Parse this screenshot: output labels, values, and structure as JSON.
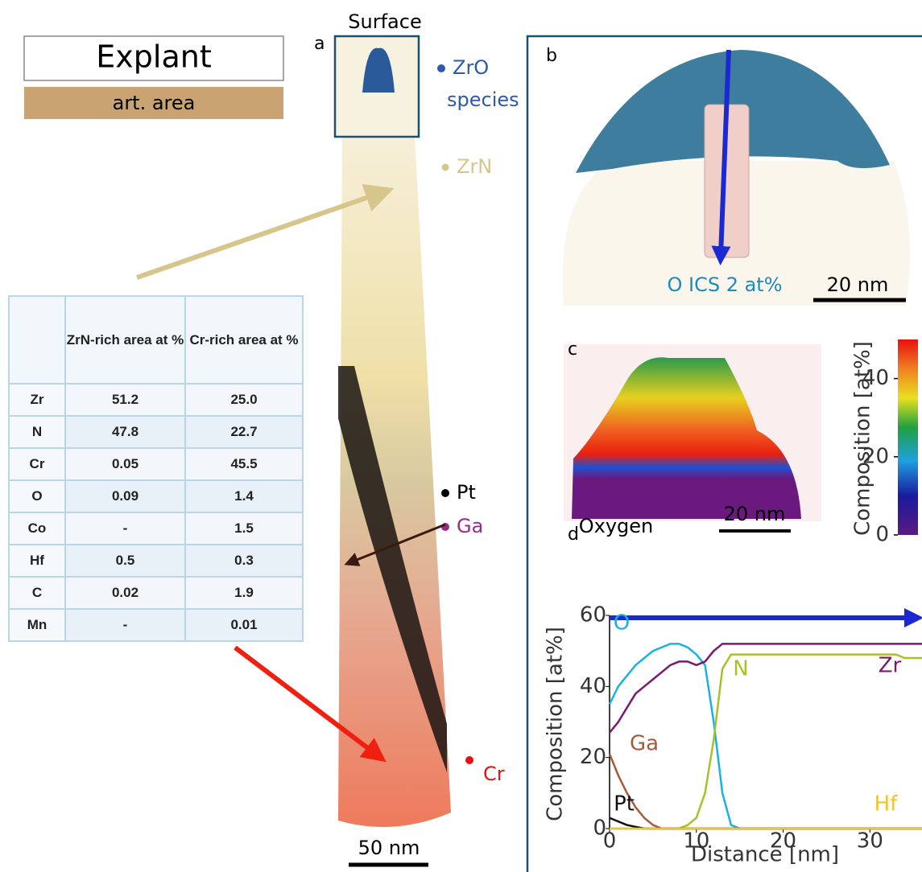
{
  "header": {
    "title": "Explant",
    "subtitle": "art. area"
  },
  "panel_a": {
    "letter": "a",
    "top_label": "Surface",
    "species": [
      "ZrO",
      "species",
      "ZrN",
      "Pt",
      "Ga",
      "Cr"
    ],
    "scale": "50 nm"
  },
  "panel_b": {
    "letter": "b",
    "label": "O ICS 2 at%",
    "scale": "20 nm"
  },
  "panel_c": {
    "letter": "c",
    "label": "Oxygen",
    "scale": "20 nm",
    "colorbar": {
      "label": "Composition [at%]",
      "lim": [
        0,
        50
      ],
      "ticks": [
        0,
        20,
        40
      ]
    }
  },
  "table": {
    "columns": [
      "ZrN-rich area at %",
      "Cr-rich area at %"
    ],
    "rows": [
      [
        "Zr",
        "51.2",
        "25.0"
      ],
      [
        "N",
        "47.8",
        "22.7"
      ],
      [
        "Cr",
        "0.05",
        "45.5"
      ],
      [
        "O",
        "0.09",
        "1.4"
      ],
      [
        "Co",
        "-",
        "1.5"
      ],
      [
        "Hf",
        "0.5",
        "0.3"
      ],
      [
        "C",
        "0.02",
        "1.9"
      ],
      [
        "Mn",
        "-",
        "0.01"
      ]
    ]
  },
  "chart_data": {
    "type": "line",
    "letter": "d",
    "x_label": "Distance [nm]",
    "y_label": "Composition [at%]",
    "xlim": [
      0,
      36
    ],
    "ylim": [
      0,
      60
    ],
    "xticks": [
      0,
      10,
      20,
      30
    ],
    "yticks": [
      0,
      20,
      40,
      60
    ],
    "x": [
      0,
      1,
      2,
      3,
      4,
      5,
      6,
      7,
      8,
      9,
      10,
      11,
      12,
      13,
      14,
      15,
      16,
      17,
      18,
      19,
      20,
      21,
      22,
      23,
      24,
      25,
      26,
      27,
      28,
      29,
      30,
      31,
      32,
      33,
      34,
      35,
      36
    ],
    "series": [
      {
        "name": "O",
        "color": "#19b2e3",
        "values": [
          35,
          40,
          43,
          46,
          48,
          50,
          51,
          52,
          52,
          51,
          49,
          46,
          30,
          10,
          1,
          0,
          0,
          0,
          0,
          0,
          0,
          0,
          0,
          0,
          0,
          0,
          0,
          0,
          0,
          0,
          0,
          0,
          0,
          0,
          0,
          0,
          0
        ]
      },
      {
        "name": "N",
        "color": "#a9c126",
        "values": [
          0,
          0,
          0,
          0,
          0,
          0,
          0,
          0,
          0,
          1,
          3,
          10,
          25,
          45,
          49,
          49,
          49,
          49,
          49,
          49,
          49,
          49,
          49,
          49,
          49,
          49,
          49,
          49,
          49,
          49,
          49,
          49,
          49,
          49,
          48,
          48,
          48
        ]
      },
      {
        "name": "Zr",
        "color": "#7a1a6e",
        "values": [
          27,
          30,
          34,
          38,
          40,
          42,
          44,
          46,
          47,
          47,
          46,
          47,
          50,
          52,
          52,
          52,
          52,
          52,
          52,
          52,
          52,
          52,
          52,
          52,
          52,
          52,
          52,
          52,
          52,
          52,
          52,
          52,
          52,
          52,
          52,
          52,
          52
        ]
      },
      {
        "name": "Ga",
        "color": "#a55a3c",
        "values": [
          21,
          15,
          10,
          6,
          3,
          1,
          0,
          0,
          0,
          0,
          0,
          0,
          0,
          0,
          0,
          0,
          0,
          0,
          0,
          0,
          0,
          0,
          0,
          0,
          0,
          0,
          0,
          0,
          0,
          0,
          0,
          0,
          0,
          0,
          0,
          0,
          0
        ]
      },
      {
        "name": "Pt",
        "color": "#111111",
        "values": [
          3,
          2,
          1,
          0.5,
          0,
          0,
          0,
          0,
          0,
          0,
          0,
          0,
          0,
          0,
          0,
          0,
          0,
          0,
          0,
          0,
          0,
          0,
          0,
          0,
          0,
          0,
          0,
          0,
          0,
          0,
          0,
          0,
          0,
          0,
          0,
          0,
          0
        ]
      },
      {
        "name": "Hf",
        "color": "#f1c232",
        "values": [
          0,
          0,
          0,
          0,
          0,
          0,
          0,
          0,
          0,
          0,
          0,
          0,
          0,
          0,
          0,
          0,
          0,
          0,
          0,
          0,
          0,
          0,
          0,
          0,
          0,
          0,
          0,
          0,
          0,
          0,
          0,
          0,
          0,
          0,
          0,
          0,
          0
        ]
      }
    ]
  }
}
